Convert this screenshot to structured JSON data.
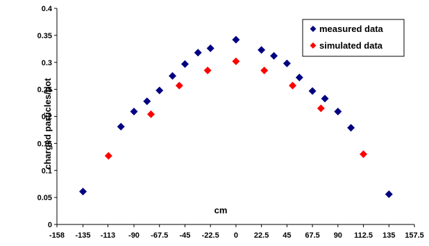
{
  "chart_data": {
    "type": "scatter",
    "xlabel": "cm",
    "ylabel": "charged particles/pot",
    "xlim": [
      -158,
      157.5
    ],
    "ylim": [
      0,
      0.4
    ],
    "x_ticks": [
      -158,
      -135,
      -113,
      -90,
      -67.5,
      -45,
      -22.5,
      0,
      22.5,
      45,
      67.5,
      90,
      112.5,
      135,
      157.5
    ],
    "y_ticks": [
      0,
      0.05,
      0.1,
      0.15,
      0.2,
      0.25,
      0.3,
      0.35,
      0.4
    ],
    "y_tick_labels": [
      "0",
      "0.05",
      "0.1",
      "0.15",
      "0.2",
      "0.25",
      "0.3",
      "0.35",
      "0.4"
    ],
    "grid": false,
    "legend_position": "top-right",
    "series": [
      {
        "name": "measured data",
        "color": "#000080",
        "marker": "diamond",
        "points": [
          [
            -135,
            0.061
          ],
          [
            -101.5,
            0.181
          ],
          [
            -90,
            0.209
          ],
          [
            -78.5,
            0.228
          ],
          [
            -67.5,
            0.248
          ],
          [
            -56,
            0.275
          ],
          [
            -45,
            0.297
          ],
          [
            -33.5,
            0.318
          ],
          [
            -22.5,
            0.326
          ],
          [
            0,
            0.342
          ],
          [
            22.5,
            0.323
          ],
          [
            33.5,
            0.312
          ],
          [
            45,
            0.298
          ],
          [
            56,
            0.272
          ],
          [
            67.5,
            0.247
          ],
          [
            78.5,
            0.233
          ],
          [
            90,
            0.209
          ],
          [
            101.5,
            0.179
          ],
          [
            135,
            0.056
          ]
        ]
      },
      {
        "name": "simulated data",
        "color": "#ff0000",
        "marker": "diamond",
        "points": [
          [
            -112.5,
            0.127
          ],
          [
            -75,
            0.204
          ],
          [
            -50,
            0.257
          ],
          [
            -25,
            0.285
          ],
          [
            0,
            0.302
          ],
          [
            25,
            0.285
          ],
          [
            50,
            0.257
          ],
          [
            75,
            0.215
          ],
          [
            112.5,
            0.13
          ]
        ]
      }
    ]
  }
}
